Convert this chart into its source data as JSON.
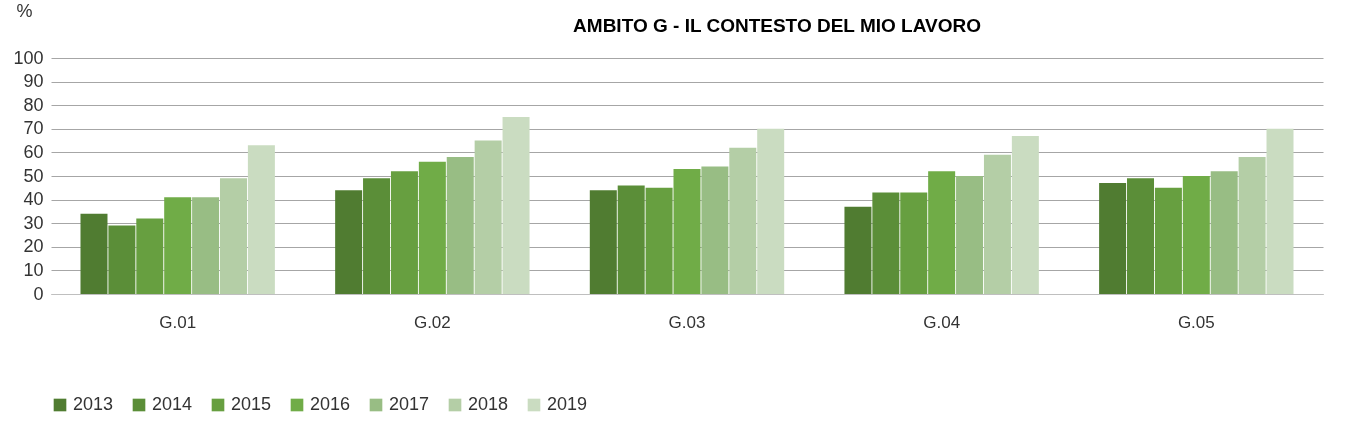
{
  "chart_data": {
    "type": "bar",
    "title": "AMBITO G - IL CONTESTO DEL MIO LAVORO",
    "ylabel": "%",
    "categories": [
      "G.01",
      "G.02",
      "G.03",
      "G.04",
      "G.05"
    ],
    "series": [
      {
        "name": "2013",
        "color": "#507c31",
        "values": [
          34,
          44,
          44,
          37,
          47
        ]
      },
      {
        "name": "2014",
        "color": "#5b8e38",
        "values": [
          29,
          49,
          46,
          43,
          49
        ]
      },
      {
        "name": "2015",
        "color": "#679f40",
        "values": [
          32,
          52,
          45,
          43,
          45
        ]
      },
      {
        "name": "2016",
        "color": "#70ac47",
        "values": [
          41,
          56,
          53,
          52,
          50
        ]
      },
      {
        "name": "2017",
        "color": "#98bd84",
        "values": [
          41,
          58,
          54,
          50,
          52
        ]
      },
      {
        "name": "2018",
        "color": "#b4cea6",
        "values": [
          49,
          65,
          62,
          59,
          58
        ]
      },
      {
        "name": "2019",
        "color": "#cadcc1",
        "values": [
          63,
          75,
          70,
          67,
          70
        ]
      }
    ],
    "ylim": [
      0,
      100
    ],
    "yticks": [
      0,
      10,
      20,
      30,
      40,
      50,
      60,
      70,
      80,
      90,
      100
    ],
    "grid": "y",
    "legend": "bottom"
  }
}
